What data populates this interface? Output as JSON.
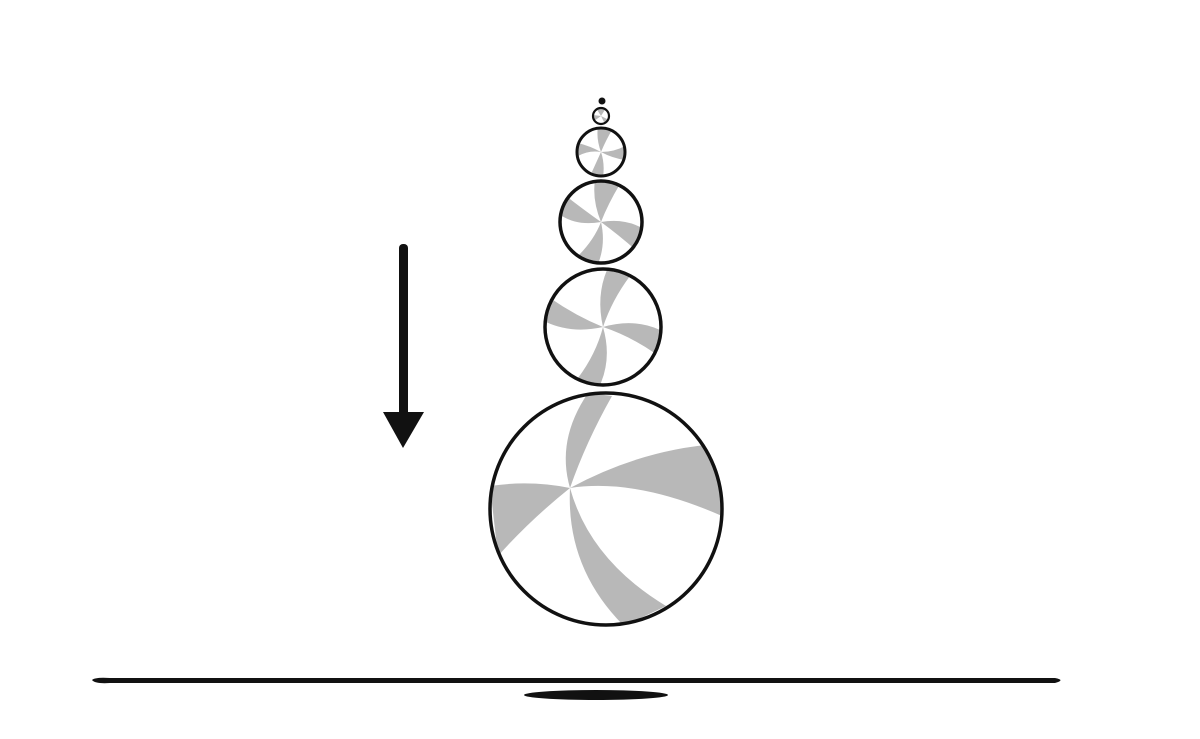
{
  "colors": {
    "ink": "#111111",
    "stripe": "#b8b8b8",
    "paper": "#ffffff"
  },
  "diagram": {
    "motion_direction": "down",
    "ball_count": 6,
    "ground_shadow": true
  }
}
